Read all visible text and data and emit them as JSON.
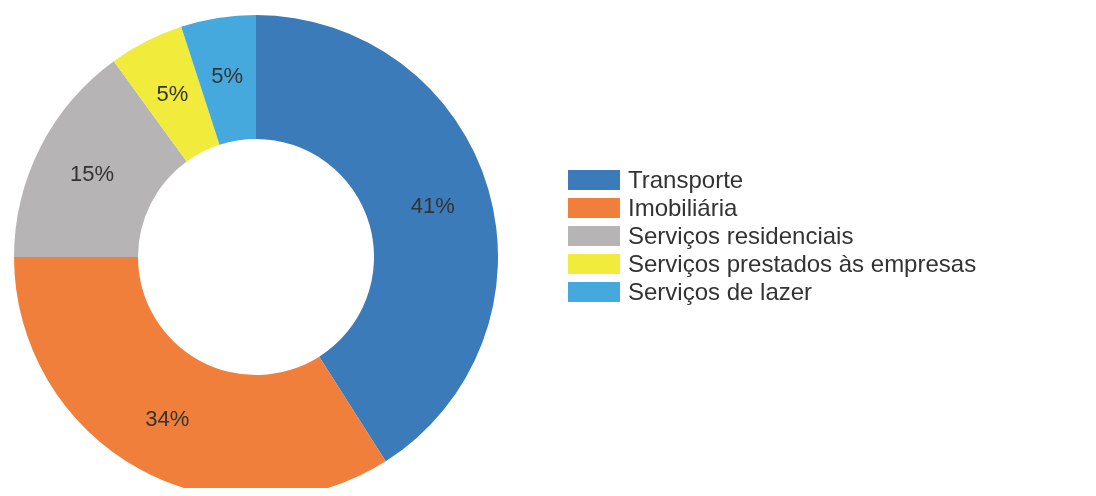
{
  "chart_data": {
    "type": "donut",
    "categories": [
      "Transporte",
      "Imobiliária",
      "Serviços residenciais",
      "Serviços prestados às empresas",
      "Serviços de lazer"
    ],
    "values": [
      41,
      34,
      15,
      5,
      5
    ],
    "colors": [
      "#3b7bb9",
      "#ef7f3b",
      "#b6b4b4",
      "#f1ec3c",
      "#46a9dd"
    ],
    "value_labels": [
      "41%",
      "34%",
      "15%",
      "5%",
      "5%"
    ],
    "legend": "right"
  }
}
